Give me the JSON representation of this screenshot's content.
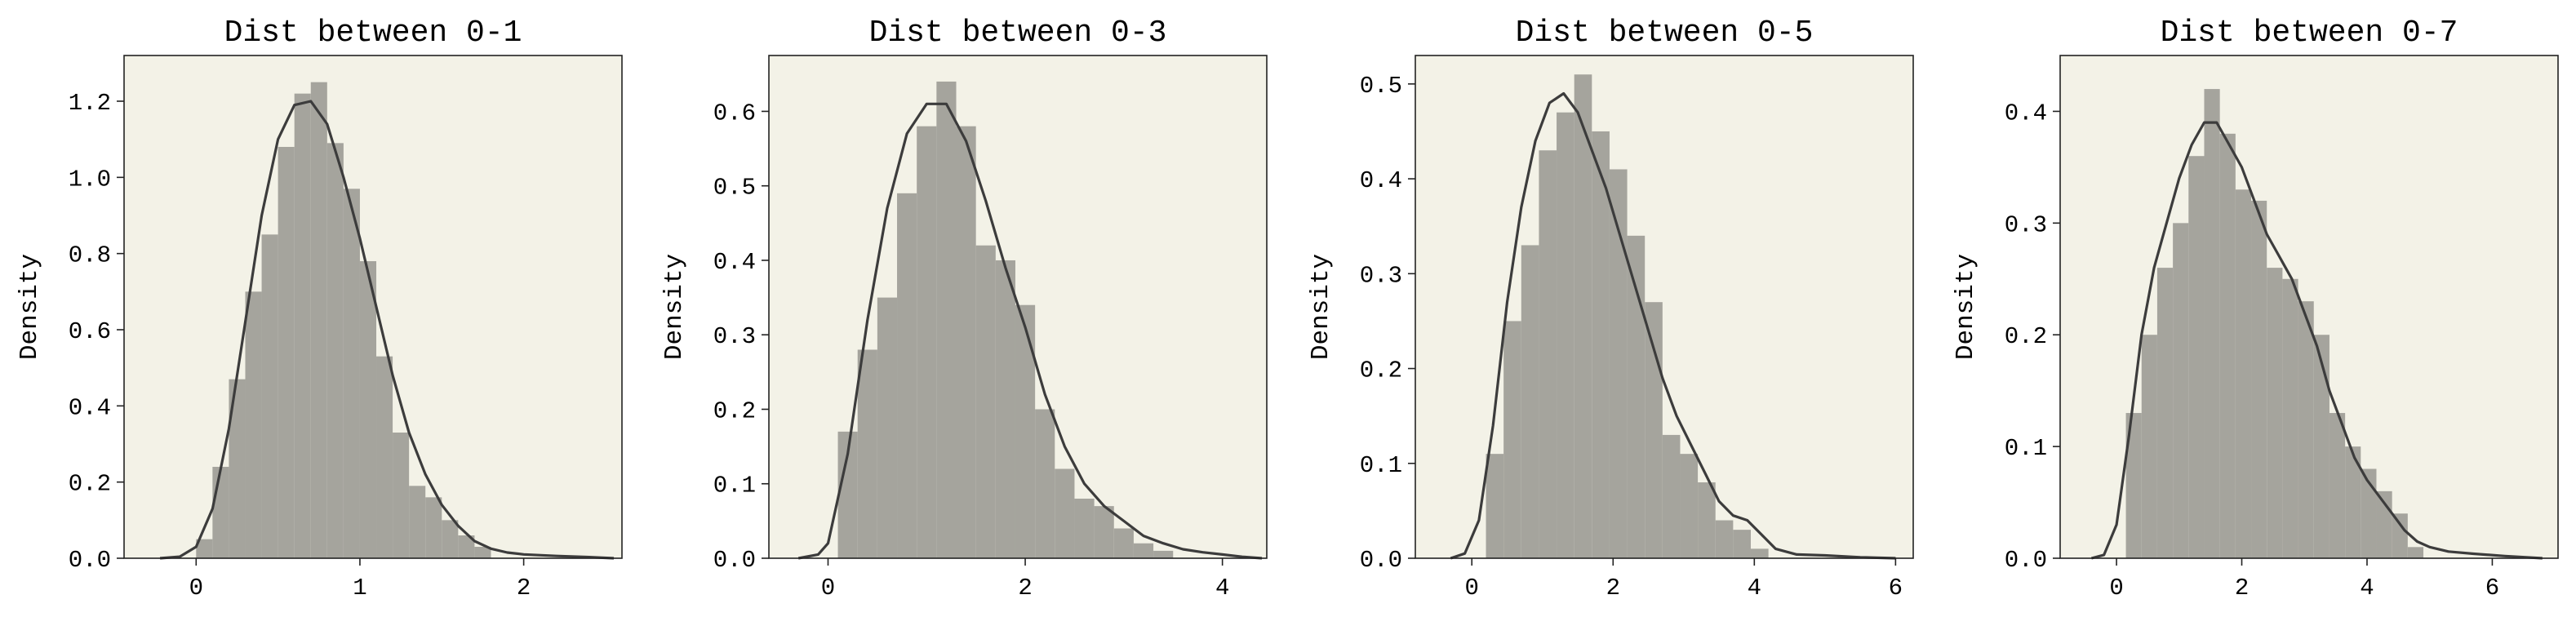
{
  "chart_data": [
    {
      "type": "histogram",
      "title": "Dist between 0-1",
      "ylabel": "Density",
      "xlabel": "",
      "xlim": [
        -0.44,
        2.6
      ],
      "ylim": [
        0,
        1.32
      ],
      "xticks": [
        0,
        1,
        2
      ],
      "yticks": [
        0.0,
        0.2,
        0.4,
        0.6,
        0.8,
        1.0,
        1.2
      ],
      "bin_width": 0.1,
      "bins": [
        {
          "x0": 0.0,
          "x1": 0.1,
          "density": 0.05
        },
        {
          "x0": 0.1,
          "x1": 0.2,
          "density": 0.24
        },
        {
          "x0": 0.2,
          "x1": 0.3,
          "density": 0.47
        },
        {
          "x0": 0.3,
          "x1": 0.4,
          "density": 0.7
        },
        {
          "x0": 0.4,
          "x1": 0.5,
          "density": 0.85
        },
        {
          "x0": 0.5,
          "x1": 0.6,
          "density": 1.08
        },
        {
          "x0": 0.6,
          "x1": 0.7,
          "density": 1.22
        },
        {
          "x0": 0.7,
          "x1": 0.8,
          "density": 1.25
        },
        {
          "x0": 0.8,
          "x1": 0.9,
          "density": 1.09
        },
        {
          "x0": 0.9,
          "x1": 1.0,
          "density": 0.97
        },
        {
          "x0": 1.0,
          "x1": 1.1,
          "density": 0.78
        },
        {
          "x0": 1.1,
          "x1": 1.2,
          "density": 0.53
        },
        {
          "x0": 1.2,
          "x1": 1.3,
          "density": 0.33
        },
        {
          "x0": 1.3,
          "x1": 1.4,
          "density": 0.19
        },
        {
          "x0": 1.4,
          "x1": 1.5,
          "density": 0.16
        },
        {
          "x0": 1.5,
          "x1": 1.6,
          "density": 0.1
        },
        {
          "x0": 1.6,
          "x1": 1.7,
          "density": 0.06
        },
        {
          "x0": 1.7,
          "x1": 1.8,
          "density": 0.03
        }
      ],
      "kde": {
        "x": [
          -0.22,
          -0.1,
          0.0,
          0.1,
          0.2,
          0.3,
          0.4,
          0.5,
          0.6,
          0.7,
          0.8,
          0.9,
          1.0,
          1.1,
          1.2,
          1.3,
          1.4,
          1.5,
          1.6,
          1.7,
          1.8,
          1.9,
          2.0,
          2.2,
          2.4,
          2.55
        ],
        "y": [
          0.0,
          0.004,
          0.03,
          0.13,
          0.34,
          0.62,
          0.9,
          1.1,
          1.19,
          1.2,
          1.14,
          1.0,
          0.84,
          0.66,
          0.48,
          0.33,
          0.22,
          0.14,
          0.085,
          0.045,
          0.025,
          0.015,
          0.01,
          0.006,
          0.003,
          0.0
        ]
      }
    },
    {
      "type": "histogram",
      "title": "Dist between 0-3",
      "ylabel": "Density",
      "xlabel": "",
      "xlim": [
        -0.6,
        4.45
      ],
      "ylim": [
        0,
        0.675
      ],
      "xticks": [
        0,
        2,
        4
      ],
      "yticks": [
        0.0,
        0.1,
        0.2,
        0.3,
        0.4,
        0.5,
        0.6
      ],
      "bin_width": 0.2,
      "bins": [
        {
          "x0": 0.1,
          "x1": 0.3,
          "density": 0.17
        },
        {
          "x0": 0.3,
          "x1": 0.5,
          "density": 0.28
        },
        {
          "x0": 0.5,
          "x1": 0.7,
          "density": 0.35
        },
        {
          "x0": 0.7,
          "x1": 0.9,
          "density": 0.49
        },
        {
          "x0": 0.9,
          "x1": 1.1,
          "density": 0.58
        },
        {
          "x0": 1.1,
          "x1": 1.3,
          "density": 0.64
        },
        {
          "x0": 1.3,
          "x1": 1.5,
          "density": 0.58
        },
        {
          "x0": 1.5,
          "x1": 1.7,
          "density": 0.42
        },
        {
          "x0": 1.7,
          "x1": 1.9,
          "density": 0.4
        },
        {
          "x0": 1.9,
          "x1": 2.1,
          "density": 0.34
        },
        {
          "x0": 2.1,
          "x1": 2.3,
          "density": 0.2
        },
        {
          "x0": 2.3,
          "x1": 2.5,
          "density": 0.12
        },
        {
          "x0": 2.5,
          "x1": 2.7,
          "density": 0.08
        },
        {
          "x0": 2.7,
          "x1": 2.9,
          "density": 0.07
        },
        {
          "x0": 2.9,
          "x1": 3.1,
          "density": 0.04
        },
        {
          "x0": 3.1,
          "x1": 3.3,
          "density": 0.02
        },
        {
          "x0": 3.3,
          "x1": 3.5,
          "density": 0.01
        }
      ],
      "kde": {
        "x": [
          -0.3,
          -0.1,
          0.0,
          0.2,
          0.4,
          0.6,
          0.8,
          1.0,
          1.2,
          1.4,
          1.6,
          1.8,
          2.0,
          2.2,
          2.4,
          2.6,
          2.8,
          3.0,
          3.2,
          3.4,
          3.6,
          3.8,
          4.0,
          4.2,
          4.4
        ],
        "y": [
          0.0,
          0.005,
          0.02,
          0.14,
          0.32,
          0.47,
          0.57,
          0.61,
          0.61,
          0.56,
          0.48,
          0.39,
          0.31,
          0.22,
          0.15,
          0.1,
          0.07,
          0.05,
          0.03,
          0.02,
          0.012,
          0.008,
          0.005,
          0.002,
          0.0
        ]
      }
    },
    {
      "type": "histogram",
      "title": "Dist between 0-5",
      "ylabel": "Density",
      "xlabel": "",
      "xlim": [
        -0.8,
        6.25
      ],
      "ylim": [
        0,
        0.53
      ],
      "xticks": [
        0,
        2,
        4,
        6
      ],
      "yticks": [
        0.0,
        0.1,
        0.2,
        0.3,
        0.4,
        0.5
      ],
      "bin_width": 0.25,
      "bins": [
        {
          "x0": 0.2,
          "x1": 0.45,
          "density": 0.11
        },
        {
          "x0": 0.45,
          "x1": 0.7,
          "density": 0.25
        },
        {
          "x0": 0.7,
          "x1": 0.95,
          "density": 0.33
        },
        {
          "x0": 0.95,
          "x1": 1.2,
          "density": 0.43
        },
        {
          "x0": 1.2,
          "x1": 1.45,
          "density": 0.47
        },
        {
          "x0": 1.45,
          "x1": 1.7,
          "density": 0.51
        },
        {
          "x0": 1.7,
          "x1": 1.95,
          "density": 0.45
        },
        {
          "x0": 1.95,
          "x1": 2.2,
          "density": 0.41
        },
        {
          "x0": 2.2,
          "x1": 2.45,
          "density": 0.34
        },
        {
          "x0": 2.45,
          "x1": 2.7,
          "density": 0.27
        },
        {
          "x0": 2.7,
          "x1": 2.95,
          "density": 0.13
        },
        {
          "x0": 2.95,
          "x1": 3.2,
          "density": 0.11
        },
        {
          "x0": 3.2,
          "x1": 3.45,
          "density": 0.08
        },
        {
          "x0": 3.45,
          "x1": 3.7,
          "density": 0.04
        },
        {
          "x0": 3.7,
          "x1": 3.95,
          "density": 0.03
        },
        {
          "x0": 3.95,
          "x1": 4.2,
          "density": 0.01
        }
      ],
      "kde": {
        "x": [
          -0.3,
          -0.1,
          0.1,
          0.3,
          0.5,
          0.7,
          0.9,
          1.1,
          1.3,
          1.5,
          1.7,
          1.9,
          2.1,
          2.3,
          2.5,
          2.7,
          2.9,
          3.1,
          3.3,
          3.5,
          3.7,
          3.9,
          4.1,
          4.3,
          4.6,
          5.0,
          5.5,
          6.0
        ],
        "y": [
          0.0,
          0.005,
          0.04,
          0.14,
          0.27,
          0.37,
          0.44,
          0.48,
          0.49,
          0.47,
          0.43,
          0.39,
          0.34,
          0.29,
          0.24,
          0.19,
          0.15,
          0.12,
          0.09,
          0.06,
          0.045,
          0.04,
          0.025,
          0.01,
          0.004,
          0.003,
          0.001,
          0.0
        ]
      }
    },
    {
      "type": "histogram",
      "title": "Dist between 0-7",
      "ylabel": "Density",
      "xlabel": "",
      "xlim": [
        -0.9,
        7.05
      ],
      "ylim": [
        0,
        0.45
      ],
      "xticks": [
        0,
        2,
        4,
        6
      ],
      "yticks": [
        0.0,
        0.1,
        0.2,
        0.3,
        0.4
      ],
      "bin_width": 0.25,
      "bins": [
        {
          "x0": 0.15,
          "x1": 0.4,
          "density": 0.13
        },
        {
          "x0": 0.4,
          "x1": 0.65,
          "density": 0.2
        },
        {
          "x0": 0.65,
          "x1": 0.9,
          "density": 0.26
        },
        {
          "x0": 0.9,
          "x1": 1.15,
          "density": 0.3
        },
        {
          "x0": 1.15,
          "x1": 1.4,
          "density": 0.36
        },
        {
          "x0": 1.4,
          "x1": 1.65,
          "density": 0.42
        },
        {
          "x0": 1.65,
          "x1": 1.9,
          "density": 0.38
        },
        {
          "x0": 1.9,
          "x1": 2.15,
          "density": 0.33
        },
        {
          "x0": 2.15,
          "x1": 2.4,
          "density": 0.32
        },
        {
          "x0": 2.4,
          "x1": 2.65,
          "density": 0.26
        },
        {
          "x0": 2.65,
          "x1": 2.9,
          "density": 0.25
        },
        {
          "x0": 2.9,
          "x1": 3.15,
          "density": 0.23
        },
        {
          "x0": 3.15,
          "x1": 3.4,
          "density": 0.2
        },
        {
          "x0": 3.4,
          "x1": 3.65,
          "density": 0.13
        },
        {
          "x0": 3.65,
          "x1": 3.9,
          "density": 0.1
        },
        {
          "x0": 3.9,
          "x1": 4.15,
          "density": 0.08
        },
        {
          "x0": 4.15,
          "x1": 4.4,
          "density": 0.06
        },
        {
          "x0": 4.4,
          "x1": 4.65,
          "density": 0.04
        },
        {
          "x0": 4.65,
          "x1": 4.9,
          "density": 0.01
        }
      ],
      "kde": {
        "x": [
          -0.4,
          -0.2,
          0.0,
          0.2,
          0.4,
          0.6,
          0.8,
          1.0,
          1.2,
          1.4,
          1.6,
          1.8,
          2.0,
          2.2,
          2.4,
          2.6,
          2.8,
          3.0,
          3.2,
          3.4,
          3.6,
          3.8,
          4.0,
          4.2,
          4.4,
          4.6,
          4.8,
          5.0,
          5.3,
          5.7,
          6.2,
          6.8
        ],
        "y": [
          0.0,
          0.003,
          0.03,
          0.11,
          0.2,
          0.26,
          0.3,
          0.34,
          0.37,
          0.39,
          0.39,
          0.37,
          0.35,
          0.32,
          0.29,
          0.27,
          0.25,
          0.22,
          0.19,
          0.15,
          0.12,
          0.09,
          0.07,
          0.055,
          0.04,
          0.025,
          0.015,
          0.01,
          0.006,
          0.004,
          0.002,
          0.0
        ]
      }
    }
  ],
  "colors": {
    "plot_background": "#f3f2e7",
    "bar_fill": "#a5a49d",
    "kde_line": "#3c3c3c",
    "axis": "#222222"
  }
}
